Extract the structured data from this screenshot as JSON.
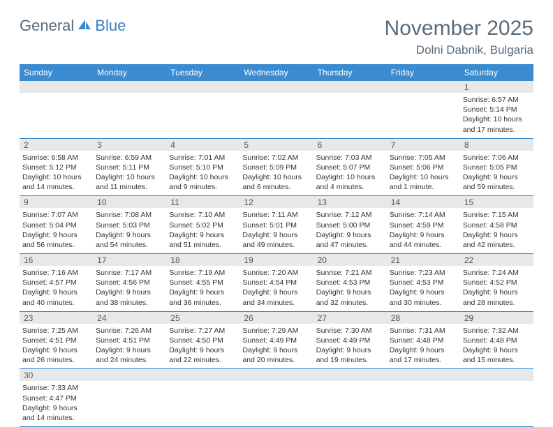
{
  "logo": {
    "text1": "General",
    "text2": "Blue",
    "sail_color": "#3b8bd1"
  },
  "header": {
    "month_title": "November 2025",
    "location": "Dolni Dabnik, Bulgaria"
  },
  "colors": {
    "header_bg": "#3b8bd1",
    "header_text": "#ffffff",
    "daynum_bg": "#e8e8e8",
    "row_border": "#3b8bd1",
    "text": "#333333",
    "title_text": "#5a6b7a"
  },
  "typography": {
    "month_fontsize": 30,
    "location_fontsize": 17,
    "dayheader_fontsize": 12,
    "daynum_fontsize": 12,
    "cell_fontsize": 10.5
  },
  "day_headers": [
    "Sunday",
    "Monday",
    "Tuesday",
    "Wednesday",
    "Thursday",
    "Friday",
    "Saturday"
  ],
  "weeks": [
    {
      "numbers": [
        "",
        "",
        "",
        "",
        "",
        "",
        "1"
      ],
      "cells": [
        null,
        null,
        null,
        null,
        null,
        null,
        {
          "sunrise": "Sunrise: 6:57 AM",
          "sunset": "Sunset: 5:14 PM",
          "day1": "Daylight: 10 hours",
          "day2": "and 17 minutes."
        }
      ]
    },
    {
      "numbers": [
        "2",
        "3",
        "4",
        "5",
        "6",
        "7",
        "8"
      ],
      "cells": [
        {
          "sunrise": "Sunrise: 6:58 AM",
          "sunset": "Sunset: 5:12 PM",
          "day1": "Daylight: 10 hours",
          "day2": "and 14 minutes."
        },
        {
          "sunrise": "Sunrise: 6:59 AM",
          "sunset": "Sunset: 5:11 PM",
          "day1": "Daylight: 10 hours",
          "day2": "and 11 minutes."
        },
        {
          "sunrise": "Sunrise: 7:01 AM",
          "sunset": "Sunset: 5:10 PM",
          "day1": "Daylight: 10 hours",
          "day2": "and 9 minutes."
        },
        {
          "sunrise": "Sunrise: 7:02 AM",
          "sunset": "Sunset: 5:09 PM",
          "day1": "Daylight: 10 hours",
          "day2": "and 6 minutes."
        },
        {
          "sunrise": "Sunrise: 7:03 AM",
          "sunset": "Sunset: 5:07 PM",
          "day1": "Daylight: 10 hours",
          "day2": "and 4 minutes."
        },
        {
          "sunrise": "Sunrise: 7:05 AM",
          "sunset": "Sunset: 5:06 PM",
          "day1": "Daylight: 10 hours",
          "day2": "and 1 minute."
        },
        {
          "sunrise": "Sunrise: 7:06 AM",
          "sunset": "Sunset: 5:05 PM",
          "day1": "Daylight: 9 hours",
          "day2": "and 59 minutes."
        }
      ]
    },
    {
      "numbers": [
        "9",
        "10",
        "11",
        "12",
        "13",
        "14",
        "15"
      ],
      "cells": [
        {
          "sunrise": "Sunrise: 7:07 AM",
          "sunset": "Sunset: 5:04 PM",
          "day1": "Daylight: 9 hours",
          "day2": "and 56 minutes."
        },
        {
          "sunrise": "Sunrise: 7:08 AM",
          "sunset": "Sunset: 5:03 PM",
          "day1": "Daylight: 9 hours",
          "day2": "and 54 minutes."
        },
        {
          "sunrise": "Sunrise: 7:10 AM",
          "sunset": "Sunset: 5:02 PM",
          "day1": "Daylight: 9 hours",
          "day2": "and 51 minutes."
        },
        {
          "sunrise": "Sunrise: 7:11 AM",
          "sunset": "Sunset: 5:01 PM",
          "day1": "Daylight: 9 hours",
          "day2": "and 49 minutes."
        },
        {
          "sunrise": "Sunrise: 7:12 AM",
          "sunset": "Sunset: 5:00 PM",
          "day1": "Daylight: 9 hours",
          "day2": "and 47 minutes."
        },
        {
          "sunrise": "Sunrise: 7:14 AM",
          "sunset": "Sunset: 4:59 PM",
          "day1": "Daylight: 9 hours",
          "day2": "and 44 minutes."
        },
        {
          "sunrise": "Sunrise: 7:15 AM",
          "sunset": "Sunset: 4:58 PM",
          "day1": "Daylight: 9 hours",
          "day2": "and 42 minutes."
        }
      ]
    },
    {
      "numbers": [
        "16",
        "17",
        "18",
        "19",
        "20",
        "21",
        "22"
      ],
      "cells": [
        {
          "sunrise": "Sunrise: 7:16 AM",
          "sunset": "Sunset: 4:57 PM",
          "day1": "Daylight: 9 hours",
          "day2": "and 40 minutes."
        },
        {
          "sunrise": "Sunrise: 7:17 AM",
          "sunset": "Sunset: 4:56 PM",
          "day1": "Daylight: 9 hours",
          "day2": "and 38 minutes."
        },
        {
          "sunrise": "Sunrise: 7:19 AM",
          "sunset": "Sunset: 4:55 PM",
          "day1": "Daylight: 9 hours",
          "day2": "and 36 minutes."
        },
        {
          "sunrise": "Sunrise: 7:20 AM",
          "sunset": "Sunset: 4:54 PM",
          "day1": "Daylight: 9 hours",
          "day2": "and 34 minutes."
        },
        {
          "sunrise": "Sunrise: 7:21 AM",
          "sunset": "Sunset: 4:53 PM",
          "day1": "Daylight: 9 hours",
          "day2": "and 32 minutes."
        },
        {
          "sunrise": "Sunrise: 7:23 AM",
          "sunset": "Sunset: 4:53 PM",
          "day1": "Daylight: 9 hours",
          "day2": "and 30 minutes."
        },
        {
          "sunrise": "Sunrise: 7:24 AM",
          "sunset": "Sunset: 4:52 PM",
          "day1": "Daylight: 9 hours",
          "day2": "and 28 minutes."
        }
      ]
    },
    {
      "numbers": [
        "23",
        "24",
        "25",
        "26",
        "27",
        "28",
        "29"
      ],
      "cells": [
        {
          "sunrise": "Sunrise: 7:25 AM",
          "sunset": "Sunset: 4:51 PM",
          "day1": "Daylight: 9 hours",
          "day2": "and 26 minutes."
        },
        {
          "sunrise": "Sunrise: 7:26 AM",
          "sunset": "Sunset: 4:51 PM",
          "day1": "Daylight: 9 hours",
          "day2": "and 24 minutes."
        },
        {
          "sunrise": "Sunrise: 7:27 AM",
          "sunset": "Sunset: 4:50 PM",
          "day1": "Daylight: 9 hours",
          "day2": "and 22 minutes."
        },
        {
          "sunrise": "Sunrise: 7:29 AM",
          "sunset": "Sunset: 4:49 PM",
          "day1": "Daylight: 9 hours",
          "day2": "and 20 minutes."
        },
        {
          "sunrise": "Sunrise: 7:30 AM",
          "sunset": "Sunset: 4:49 PM",
          "day1": "Daylight: 9 hours",
          "day2": "and 19 minutes."
        },
        {
          "sunrise": "Sunrise: 7:31 AM",
          "sunset": "Sunset: 4:48 PM",
          "day1": "Daylight: 9 hours",
          "day2": "and 17 minutes."
        },
        {
          "sunrise": "Sunrise: 7:32 AM",
          "sunset": "Sunset: 4:48 PM",
          "day1": "Daylight: 9 hours",
          "day2": "and 15 minutes."
        }
      ]
    },
    {
      "numbers": [
        "30",
        "",
        "",
        "",
        "",
        "",
        ""
      ],
      "cells": [
        {
          "sunrise": "Sunrise: 7:33 AM",
          "sunset": "Sunset: 4:47 PM",
          "day1": "Daylight: 9 hours",
          "day2": "and 14 minutes."
        },
        null,
        null,
        null,
        null,
        null,
        null
      ]
    }
  ]
}
